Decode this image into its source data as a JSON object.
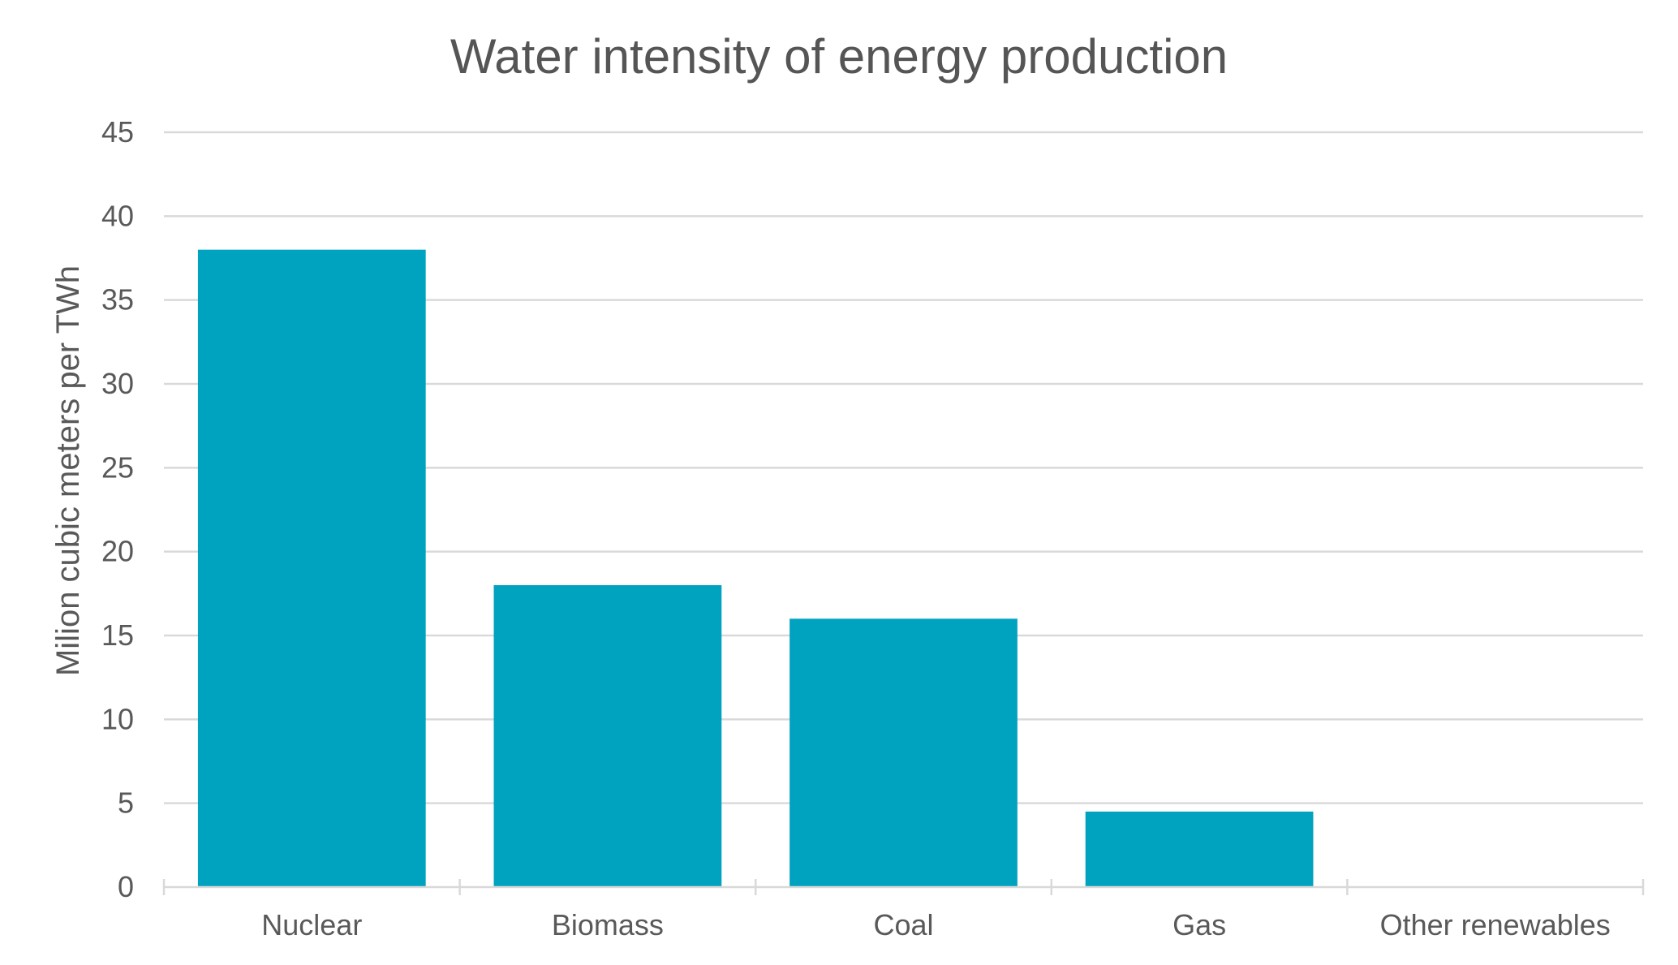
{
  "chart_data": {
    "type": "bar",
    "title": "Water intensity of energy production",
    "xlabel": "",
    "ylabel": "Milion cubic meters per TWh",
    "categories": [
      "Nuclear",
      "Biomass",
      "Coal",
      "Gas",
      "Other renewables"
    ],
    "values": [
      38,
      18,
      16,
      4.5,
      0
    ],
    "ylim": [
      0,
      45
    ],
    "yticks": [
      0,
      5,
      10,
      15,
      20,
      25,
      30,
      35,
      40,
      45
    ],
    "grid": true,
    "legend": "none",
    "bar_color": "#00a3bf",
    "grid_color": "#d9d9d9",
    "text_color": "#595959"
  }
}
